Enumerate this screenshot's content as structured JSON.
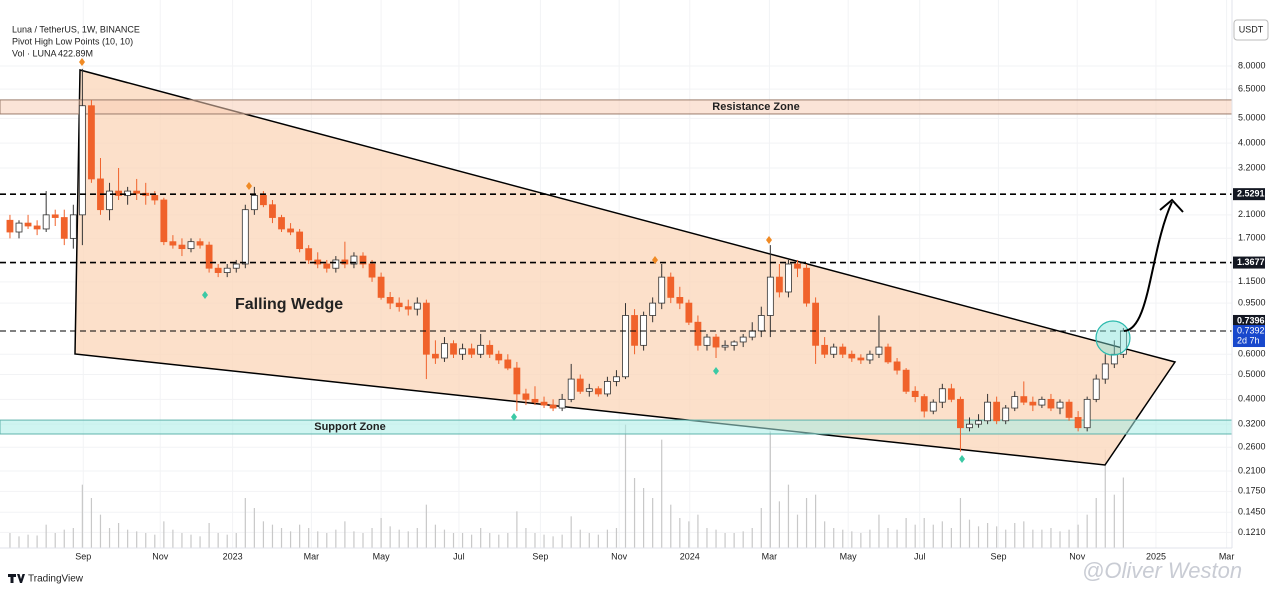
{
  "chart_data": {
    "type": "candlestick",
    "title": "Luna / TetherUS, 1W, BINANCE",
    "indicator": "Pivot High Low Points (10, 10)",
    "currency": "USDT",
    "annotations": {
      "pattern": "Falling Wedge",
      "resistance": "Resistance Zone",
      "support": "Support Zone"
    },
    "resistance_zone": [
      5.2,
      5.9
    ],
    "support_zone": [
      0.293,
      0.332
    ],
    "levels": [
      2.5291,
      1.3677,
      0.7396
    ],
    "countdown": "2d 7h",
    "log_scale": true,
    "grid": true,
    "up_color": "#ffffff",
    "down_color": "#f0622b",
    "ylim": [
      0.113,
      12.1
    ],
    "yticks": [
      {
        "value": 8,
        "label": "8.0000"
      },
      {
        "value": 6.5,
        "label": "6.5000"
      },
      {
        "value": 5,
        "label": "5.0000"
      },
      {
        "value": 4,
        "label": "4.0000"
      },
      {
        "value": 3.2,
        "label": "3.2000"
      },
      {
        "value": 2.1,
        "label": "2.1000"
      },
      {
        "value": 1.7,
        "label": "1.7000"
      },
      {
        "value": 1.15,
        "label": "1.1500"
      },
      {
        "value": 0.95,
        "label": "0.9500"
      },
      {
        "value": 0.6,
        "label": "0.6000"
      },
      {
        "value": 0.5,
        "label": "0.5000"
      },
      {
        "value": 0.4,
        "label": "0.4000"
      },
      {
        "value": 0.32,
        "label": "0.3200"
      },
      {
        "value": 0.26,
        "label": "0.2600"
      },
      {
        "value": 0.21,
        "label": "0.2100"
      },
      {
        "value": 0.175,
        "label": "0.1750"
      },
      {
        "value": 0.145,
        "label": "0.1450"
      },
      {
        "value": 0.121,
        "label": "0.1210"
      }
    ],
    "xlim": [
      -1.1,
      135
    ],
    "xticks": [
      {
        "value": 8.1,
        "label": "Sep"
      },
      {
        "value": 16.6,
        "label": "Nov"
      },
      {
        "value": 24.6,
        "label": "2023"
      },
      {
        "value": 33.3,
        "label": "Mar"
      },
      {
        "value": 41.0,
        "label": "May"
      },
      {
        "value": 49.6,
        "label": "Jul"
      },
      {
        "value": 58.6,
        "label": "Sep"
      },
      {
        "value": 67.3,
        "label": "Nov"
      },
      {
        "value": 75.1,
        "label": "2024"
      },
      {
        "value": 83.9,
        "label": "Mar"
      },
      {
        "value": 92.6,
        "label": "May"
      },
      {
        "value": 100.5,
        "label": "Jul"
      },
      {
        "value": 109.2,
        "label": "Sep"
      },
      {
        "value": 117.9,
        "label": "Nov"
      },
      {
        "value": 126.6,
        "label": "2025"
      },
      {
        "value": 134.4,
        "label": "Mar"
      }
    ],
    "ohlc": [
      [
        2.0,
        2.1,
        1.7,
        1.8
      ],
      [
        1.8,
        2.0,
        1.7,
        1.95
      ],
      [
        1.95,
        2.1,
        1.85,
        1.9
      ],
      [
        1.9,
        2.0,
        1.75,
        1.85
      ],
      [
        1.85,
        2.6,
        1.8,
        2.1
      ],
      [
        2.1,
        2.2,
        1.9,
        2.05
      ],
      [
        2.05,
        2.2,
        1.6,
        1.7
      ],
      [
        1.7,
        2.3,
        1.55,
        2.1
      ],
      [
        2.1,
        7.8,
        1.6,
        5.6
      ],
      [
        5.6,
        5.9,
        2.8,
        2.9
      ],
      [
        2.9,
        3.5,
        2.1,
        2.2
      ],
      [
        2.2,
        2.8,
        2.0,
        2.6
      ],
      [
        2.6,
        3.2,
        2.4,
        2.5
      ],
      [
        2.5,
        2.7,
        2.3,
        2.6
      ],
      [
        2.6,
        2.9,
        2.4,
        2.55
      ],
      [
        2.55,
        2.8,
        2.3,
        2.5
      ],
      [
        2.5,
        2.6,
        2.3,
        2.4
      ],
      [
        2.4,
        2.45,
        1.6,
        1.65
      ],
      [
        1.65,
        1.75,
        1.55,
        1.6
      ],
      [
        1.6,
        1.7,
        1.45,
        1.55
      ],
      [
        1.55,
        1.7,
        1.5,
        1.65
      ],
      [
        1.65,
        1.7,
        1.55,
        1.6
      ],
      [
        1.6,
        1.65,
        1.25,
        1.3
      ],
      [
        1.3,
        1.35,
        1.2,
        1.25
      ],
      [
        1.25,
        1.35,
        1.2,
        1.3
      ],
      [
        1.3,
        1.4,
        1.25,
        1.35
      ],
      [
        1.35,
        2.3,
        1.3,
        2.2
      ],
      [
        2.2,
        2.7,
        2.1,
        2.5
      ],
      [
        2.5,
        2.6,
        2.25,
        2.3
      ],
      [
        2.3,
        2.4,
        1.95,
        2.05
      ],
      [
        2.05,
        2.1,
        1.8,
        1.85
      ],
      [
        1.85,
        1.95,
        1.75,
        1.8
      ],
      [
        1.8,
        1.85,
        1.5,
        1.55
      ],
      [
        1.55,
        1.6,
        1.35,
        1.4
      ],
      [
        1.4,
        1.5,
        1.3,
        1.35
      ],
      [
        1.35,
        1.4,
        1.25,
        1.3
      ],
      [
        1.3,
        1.45,
        1.25,
        1.4
      ],
      [
        1.4,
        1.65,
        1.3,
        1.35
      ],
      [
        1.35,
        1.5,
        1.3,
        1.45
      ],
      [
        1.45,
        1.5,
        1.3,
        1.35
      ],
      [
        1.35,
        1.4,
        1.15,
        1.2
      ],
      [
        1.2,
        1.25,
        0.98,
        1.0
      ],
      [
        1.0,
        1.05,
        0.9,
        0.95
      ],
      [
        0.95,
        1.0,
        0.88,
        0.92
      ],
      [
        0.92,
        0.98,
        0.85,
        0.9
      ],
      [
        0.9,
        1.0,
        0.85,
        0.95
      ],
      [
        0.95,
        0.98,
        0.48,
        0.6
      ],
      [
        0.6,
        0.68,
        0.55,
        0.58
      ],
      [
        0.58,
        0.7,
        0.56,
        0.66
      ],
      [
        0.66,
        0.68,
        0.58,
        0.6
      ],
      [
        0.6,
        0.66,
        0.57,
        0.63
      ],
      [
        0.63,
        0.66,
        0.58,
        0.6
      ],
      [
        0.6,
        0.72,
        0.58,
        0.65
      ],
      [
        0.65,
        0.68,
        0.58,
        0.6
      ],
      [
        0.6,
        0.62,
        0.55,
        0.57
      ],
      [
        0.57,
        0.6,
        0.52,
        0.53
      ],
      [
        0.53,
        0.56,
        0.36,
        0.42
      ],
      [
        0.42,
        0.44,
        0.38,
        0.4
      ],
      [
        0.4,
        0.45,
        0.38,
        0.39
      ],
      [
        0.39,
        0.41,
        0.37,
        0.38
      ],
      [
        0.38,
        0.4,
        0.36,
        0.37
      ],
      [
        0.37,
        0.42,
        0.36,
        0.4
      ],
      [
        0.4,
        0.55,
        0.39,
        0.48
      ],
      [
        0.48,
        0.5,
        0.42,
        0.43
      ],
      [
        0.43,
        0.46,
        0.41,
        0.44
      ],
      [
        0.44,
        0.45,
        0.41,
        0.42
      ],
      [
        0.42,
        0.49,
        0.41,
        0.47
      ],
      [
        0.47,
        0.52,
        0.45,
        0.49
      ],
      [
        0.49,
        0.95,
        0.48,
        0.85
      ],
      [
        0.85,
        0.9,
        0.6,
        0.65
      ],
      [
        0.65,
        0.88,
        0.62,
        0.85
      ],
      [
        0.85,
        1.0,
        0.8,
        0.95
      ],
      [
        0.95,
        1.35,
        0.9,
        1.2
      ],
      [
        1.2,
        1.25,
        0.95,
        1.0
      ],
      [
        1.0,
        1.1,
        0.9,
        0.95
      ],
      [
        0.95,
        0.98,
        0.78,
        0.8
      ],
      [
        0.8,
        0.85,
        0.62,
        0.65
      ],
      [
        0.65,
        0.72,
        0.62,
        0.7
      ],
      [
        0.7,
        0.72,
        0.58,
        0.64
      ],
      [
        0.64,
        0.68,
        0.62,
        0.65
      ],
      [
        0.65,
        0.68,
        0.62,
        0.67
      ],
      [
        0.67,
        0.72,
        0.64,
        0.7
      ],
      [
        0.7,
        0.8,
        0.68,
        0.74
      ],
      [
        0.74,
        0.92,
        0.7,
        0.85
      ],
      [
        0.85,
        1.6,
        0.7,
        1.2
      ],
      [
        1.2,
        1.35,
        1.0,
        1.05
      ],
      [
        1.05,
        1.4,
        1.0,
        1.35
      ],
      [
        1.35,
        1.4,
        1.2,
        1.3
      ],
      [
        1.3,
        1.35,
        0.92,
        0.95
      ],
      [
        0.95,
        1.0,
        0.55,
        0.65
      ],
      [
        0.65,
        0.7,
        0.58,
        0.6
      ],
      [
        0.6,
        0.66,
        0.58,
        0.64
      ],
      [
        0.64,
        0.66,
        0.58,
        0.6
      ],
      [
        0.6,
        0.62,
        0.56,
        0.58
      ],
      [
        0.58,
        0.6,
        0.55,
        0.57
      ],
      [
        0.57,
        0.62,
        0.55,
        0.6
      ],
      [
        0.6,
        0.85,
        0.58,
        0.64
      ],
      [
        0.64,
        0.66,
        0.55,
        0.56
      ],
      [
        0.56,
        0.58,
        0.5,
        0.52
      ],
      [
        0.52,
        0.53,
        0.42,
        0.43
      ],
      [
        0.43,
        0.45,
        0.39,
        0.41
      ],
      [
        0.41,
        0.42,
        0.34,
        0.36
      ],
      [
        0.36,
        0.4,
        0.35,
        0.39
      ],
      [
        0.39,
        0.46,
        0.37,
        0.44
      ],
      [
        0.44,
        0.46,
        0.39,
        0.4
      ],
      [
        0.4,
        0.41,
        0.25,
        0.31
      ],
      [
        0.31,
        0.34,
        0.3,
        0.32
      ],
      [
        0.32,
        0.35,
        0.31,
        0.33
      ],
      [
        0.33,
        0.42,
        0.32,
        0.39
      ],
      [
        0.39,
        0.41,
        0.32,
        0.33
      ],
      [
        0.33,
        0.38,
        0.32,
        0.37
      ],
      [
        0.37,
        0.43,
        0.36,
        0.41
      ],
      [
        0.41,
        0.47,
        0.38,
        0.39
      ],
      [
        0.39,
        0.41,
        0.36,
        0.38
      ],
      [
        0.38,
        0.41,
        0.37,
        0.4
      ],
      [
        0.4,
        0.42,
        0.36,
        0.37
      ],
      [
        0.37,
        0.4,
        0.35,
        0.39
      ],
      [
        0.39,
        0.4,
        0.33,
        0.34
      ],
      [
        0.34,
        0.36,
        0.3,
        0.31
      ],
      [
        0.31,
        0.41,
        0.3,
        0.4
      ],
      [
        0.4,
        0.5,
        0.39,
        0.48
      ],
      [
        0.48,
        0.6,
        0.46,
        0.55
      ],
      [
        0.55,
        0.68,
        0.53,
        0.6
      ],
      [
        0.6,
        0.76,
        0.58,
        0.7392
      ]
    ],
    "volume": {
      "name": "Vol · LUNA",
      "value_labels": {
        "123": "422.89M"
      },
      "values": [
        90,
        70,
        80,
        75,
        140,
        90,
        110,
        120,
        380,
        300,
        200,
        120,
        150,
        110,
        100,
        90,
        80,
        160,
        110,
        90,
        80,
        70,
        150,
        90,
        80,
        90,
        300,
        240,
        160,
        140,
        120,
        100,
        140,
        120,
        100,
        90,
        110,
        160,
        100,
        90,
        120,
        180,
        130,
        110,
        100,
        120,
        260,
        140,
        110,
        90,
        90,
        80,
        120,
        90,
        80,
        90,
        220,
        120,
        90,
        80,
        70,
        80,
        190,
        110,
        90,
        80,
        110,
        120,
        740,
        420,
        360,
        300,
        650,
        260,
        180,
        160,
        200,
        120,
        110,
        90,
        90,
        100,
        120,
        240,
        700,
        280,
        380,
        200,
        300,
        320,
        160,
        120,
        110,
        100,
        90,
        110,
        200,
        120,
        110,
        180,
        140,
        180,
        140,
        160,
        120,
        300,
        170,
        130,
        150,
        130,
        110,
        150,
        160,
        110,
        110,
        120,
        100,
        110,
        140,
        200,
        300,
        590,
        320,
        422.89
      ]
    }
  }
}
